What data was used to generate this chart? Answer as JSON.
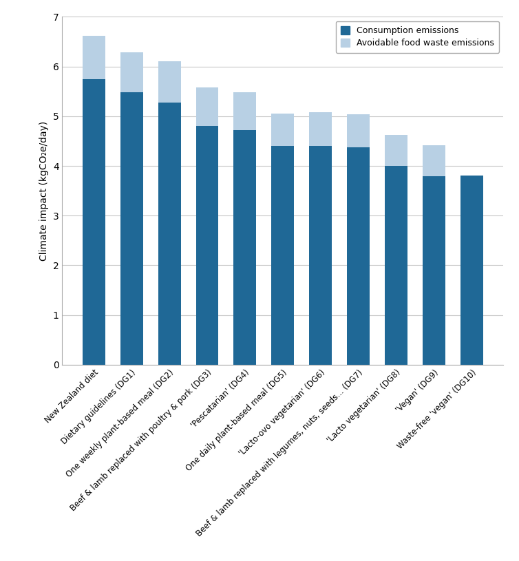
{
  "categories": [
    "New Zealand diet",
    "Dietary guidelines (DG1)",
    "One weekly plant-based meal (DG2)",
    "Beef & lamb replaced with poultry & pork (DG3)",
    "'Pescatarian' (DG4)",
    "One daily plant-based meal (DG5)",
    "'Lacto-ovo vegetarian' (DG6)",
    "Beef & lamb replaced with legumes, nuts, seeds... (DG7)",
    "'Lacto vegetarian' (DG8)",
    "'Vegan' (DG9)",
    "Waste-free 'vegan' (DG10)"
  ],
  "consumption": [
    5.75,
    5.48,
    5.28,
    4.8,
    4.72,
    4.4,
    4.4,
    4.37,
    4.0,
    3.79,
    3.8
  ],
  "food_waste": [
    0.87,
    0.8,
    0.82,
    0.78,
    0.76,
    0.65,
    0.68,
    0.67,
    0.62,
    0.63,
    0.0
  ],
  "consumption_color": "#1f6896",
  "food_waste_color": "#b8d0e4",
  "ylabel": "Climate impact (kgCO₂e/day)",
  "ylim": [
    0,
    7
  ],
  "yticks": [
    0,
    1,
    2,
    3,
    4,
    5,
    6,
    7
  ],
  "legend_labels": [
    "Consumption emissions",
    "Avoidable food waste emissions"
  ],
  "bar_width": 0.6,
  "background_color": "#ffffff",
  "grid_color": "#c8c8c8",
  "figsize": [
    7.54,
    8.15
  ],
  "dpi": 100
}
